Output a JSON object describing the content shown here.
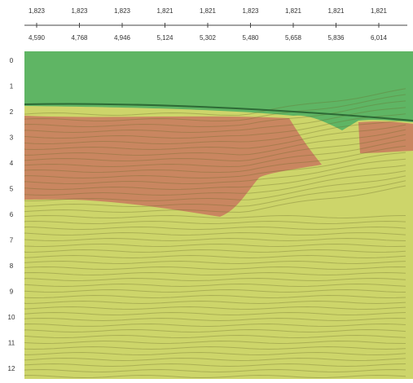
{
  "header": {
    "row1": [
      "1,823",
      "1,823",
      "1,823",
      "1,821",
      "1,821",
      "1,823",
      "1,821",
      "1,821",
      "1,821"
    ],
    "row2": [
      "4,590",
      "4,768",
      "4,946",
      "5,124",
      "5,302",
      "5,480",
      "5,658",
      "5,836",
      "6,014"
    ]
  },
  "depth_labels": [
    "0",
    "1",
    "2",
    "3",
    "4",
    "5",
    "6",
    "7",
    "8",
    "9",
    "10",
    "11",
    "12"
  ]
}
